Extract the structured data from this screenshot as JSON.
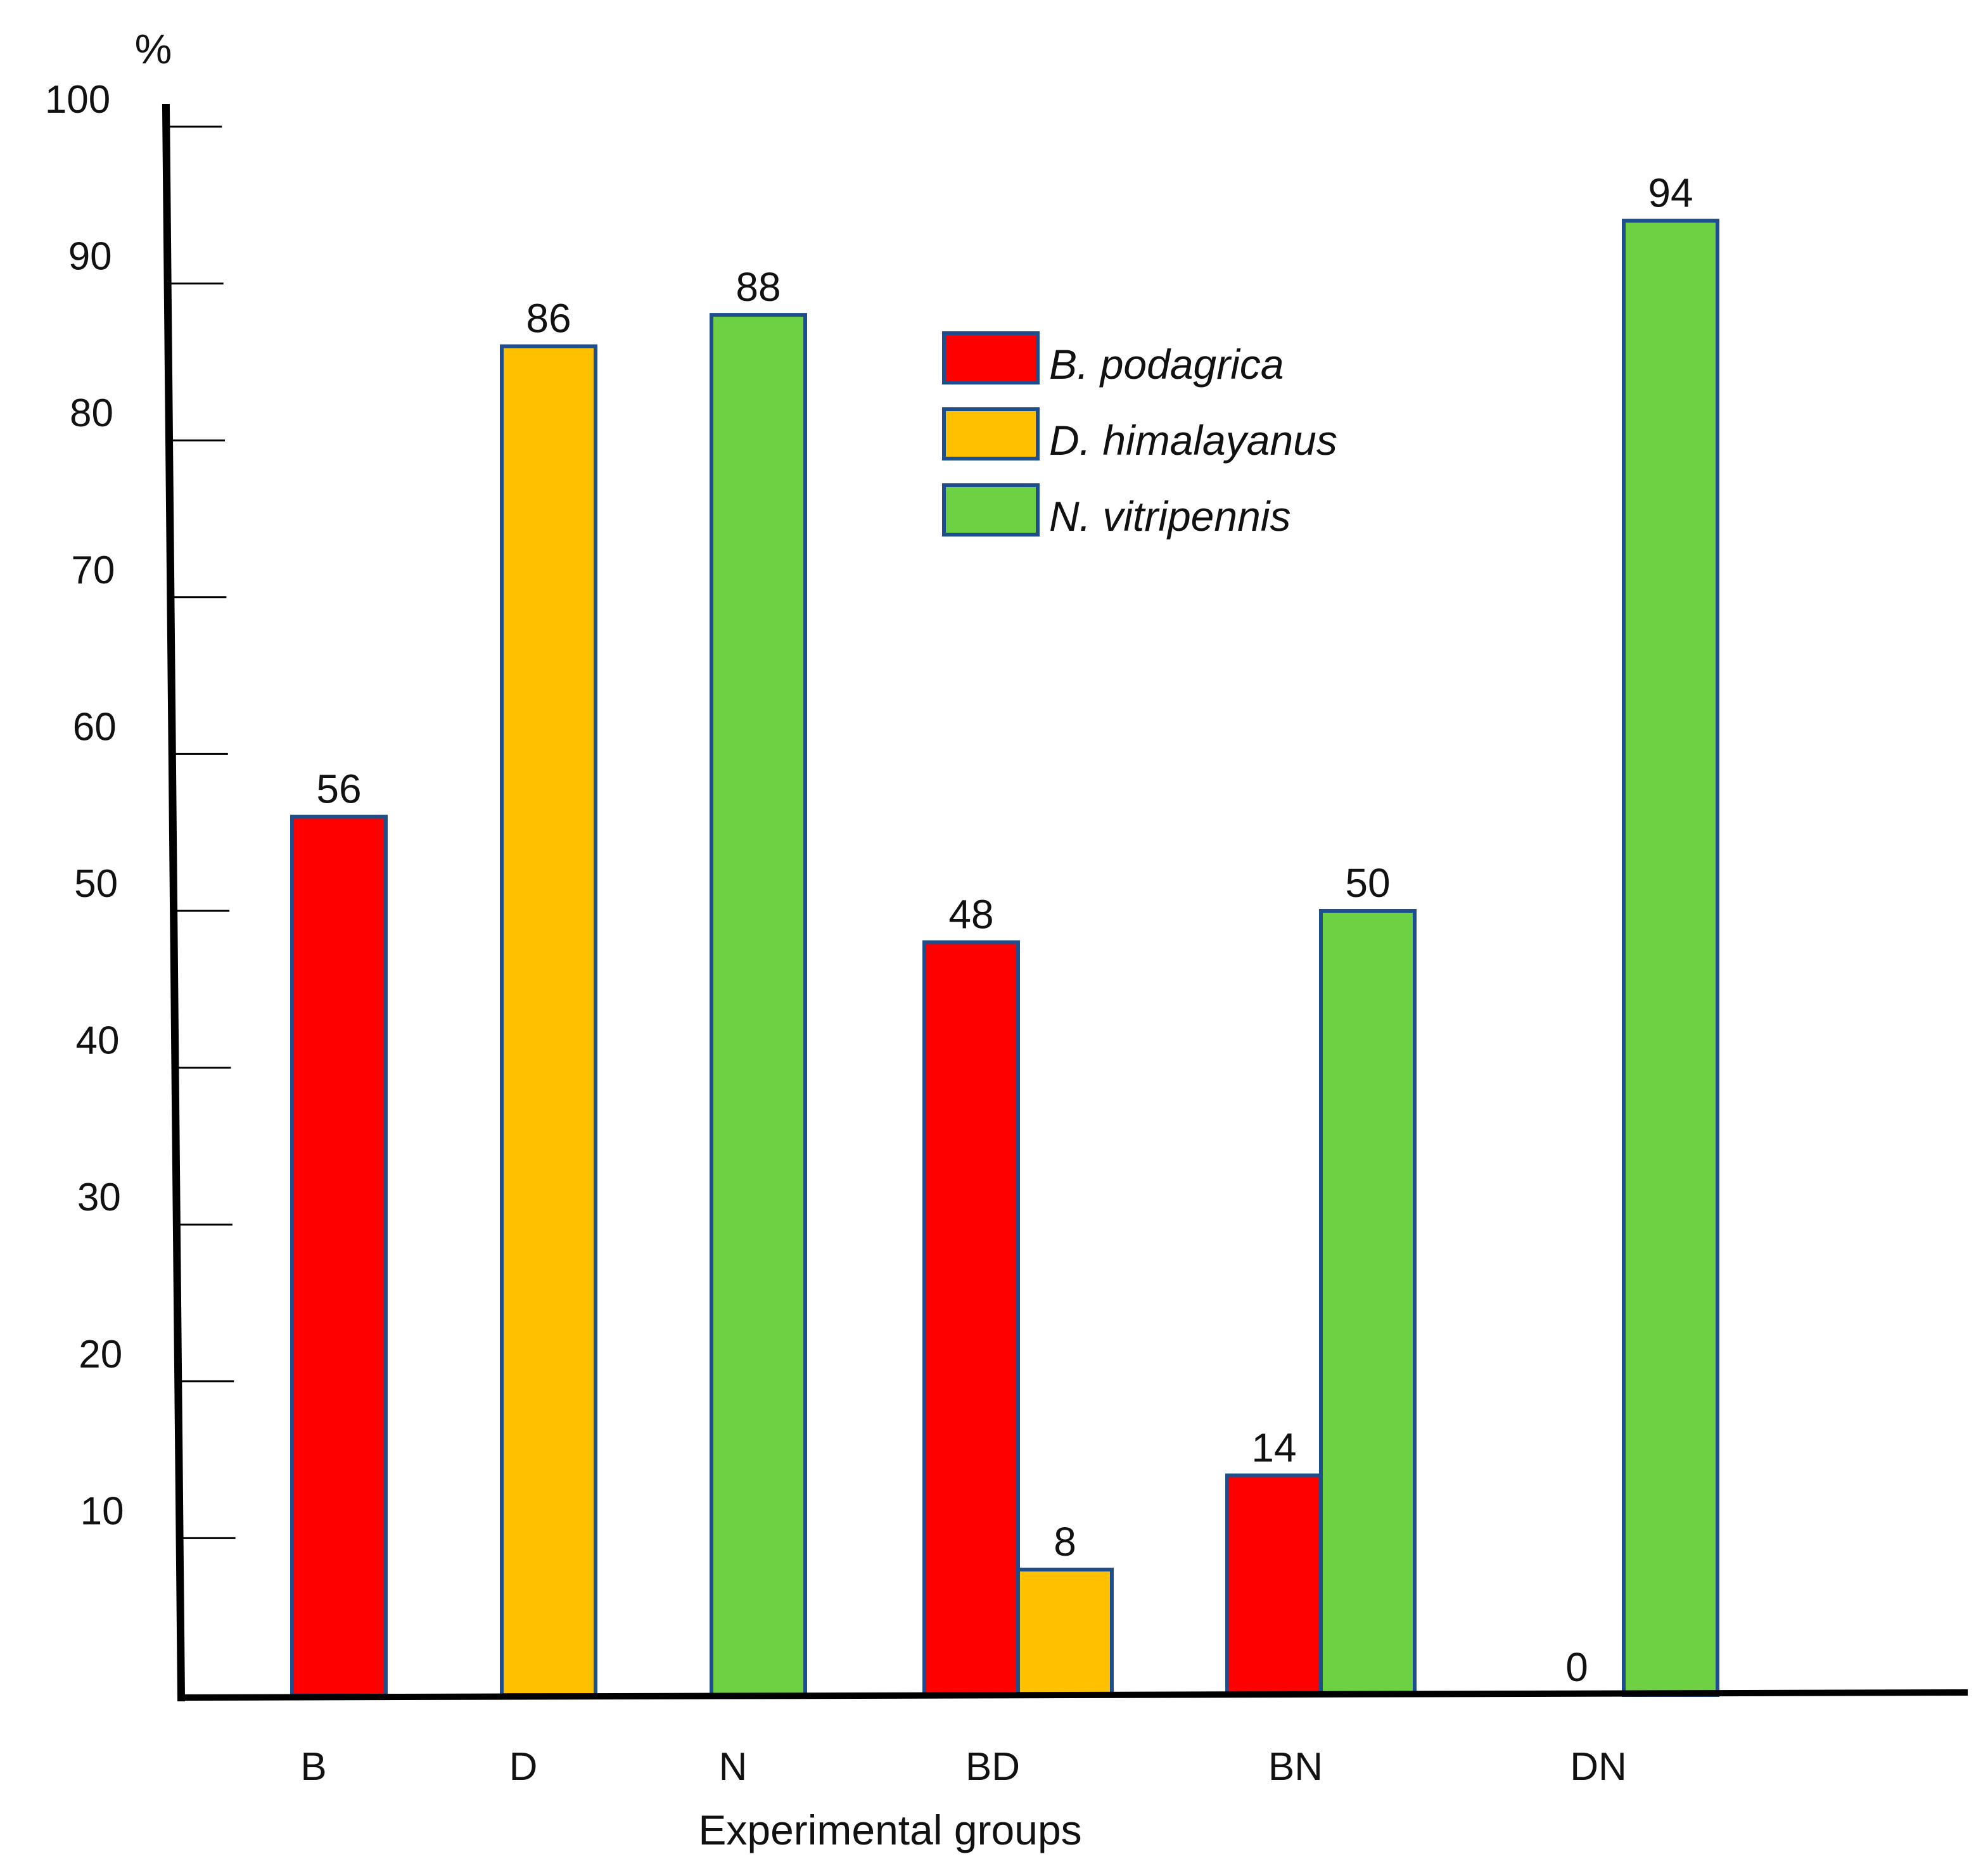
{
  "chart_data": {
    "type": "bar",
    "title": "",
    "ylabel": "%",
    "xlabel": "Experimental groups",
    "ylim": [
      0,
      100
    ],
    "yticks": [
      10,
      20,
      30,
      40,
      50,
      60,
      70,
      80,
      90,
      100
    ],
    "grid": false,
    "legend_position": "top-center",
    "categories": [
      "B",
      "D",
      "N",
      "BD",
      "BN",
      "DN"
    ],
    "series": [
      {
        "name": "B. podagrica",
        "color": "#ff0000",
        "values": [
          56,
          null,
          null,
          48,
          14,
          0
        ]
      },
      {
        "name": "D. himalayanus",
        "color": "#ffc000",
        "values": [
          null,
          86,
          null,
          8,
          null,
          null
        ]
      },
      {
        "name": "N. vitripennis",
        "color": "#6dd143",
        "values": [
          null,
          null,
          88,
          null,
          50,
          94
        ]
      }
    ],
    "bar_outline_color": "#1f4e8c",
    "axis_color": "#000000"
  }
}
